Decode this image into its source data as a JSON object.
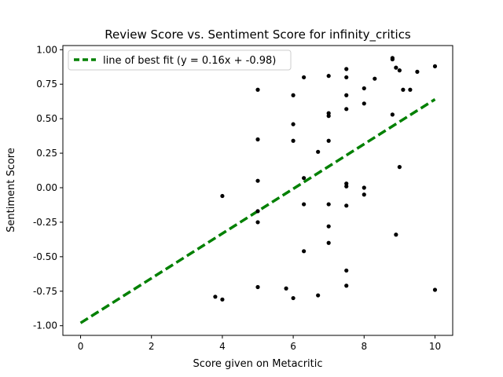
{
  "chart_data": {
    "type": "scatter",
    "title": "Review Score vs. Sentiment Score for infinity_critics",
    "xlabel": "Score given on Metacritic",
    "ylabel": "Sentiment Score",
    "xlim": [
      -0.5,
      10.5
    ],
    "ylim": [
      -1.07,
      1.03
    ],
    "xticks": [
      0,
      2,
      4,
      6,
      8,
      10
    ],
    "yticks": [
      -1.0,
      -0.75,
      -0.5,
      -0.25,
      0.0,
      0.25,
      0.5,
      0.75,
      1.0
    ],
    "grid": false,
    "legend": "upper left",
    "point_color": "#000000",
    "fit_color": "#008000",
    "series": [
      {
        "values": [
          [
            3.8,
            -0.79
          ],
          [
            4.0,
            -0.81
          ],
          [
            4.0,
            -0.06
          ],
          [
            5.0,
            0.71
          ],
          [
            5.0,
            0.35
          ],
          [
            5.0,
            0.05
          ],
          [
            5.0,
            -0.17
          ],
          [
            5.0,
            -0.25
          ],
          [
            5.0,
            -0.72
          ],
          [
            5.8,
            -0.73
          ],
          [
            6.0,
            0.67
          ],
          [
            6.0,
            0.46
          ],
          [
            6.0,
            0.34
          ],
          [
            6.0,
            -0.8
          ],
          [
            6.3,
            0.8
          ],
          [
            6.3,
            0.07
          ],
          [
            6.3,
            -0.12
          ],
          [
            6.3,
            -0.46
          ],
          [
            6.7,
            0.26
          ],
          [
            6.7,
            -0.78
          ],
          [
            7.0,
            0.81
          ],
          [
            7.0,
            0.54
          ],
          [
            7.0,
            0.52
          ],
          [
            7.0,
            0.34
          ],
          [
            7.0,
            -0.12
          ],
          [
            7.0,
            -0.28
          ],
          [
            7.0,
            -0.4
          ],
          [
            7.5,
            0.86
          ],
          [
            7.5,
            0.8
          ],
          [
            7.5,
            0.67
          ],
          [
            7.5,
            0.57
          ],
          [
            7.5,
            0.03
          ],
          [
            7.5,
            0.01
          ],
          [
            7.5,
            -0.13
          ],
          [
            7.5,
            -0.6
          ],
          [
            7.5,
            -0.71
          ],
          [
            8.0,
            0.72
          ],
          [
            8.0,
            0.61
          ],
          [
            8.0,
            0.0
          ],
          [
            8.0,
            -0.05
          ],
          [
            8.3,
            0.79
          ],
          [
            8.8,
            0.93
          ],
          [
            8.8,
            0.94
          ],
          [
            8.8,
            0.53
          ],
          [
            8.9,
            0.87
          ],
          [
            8.9,
            -0.34
          ],
          [
            9.0,
            0.85
          ],
          [
            9.0,
            0.15
          ],
          [
            9.1,
            0.71
          ],
          [
            9.3,
            0.71
          ],
          [
            9.5,
            0.84
          ],
          [
            10.0,
            0.88
          ],
          [
            10.0,
            -0.74
          ]
        ]
      }
    ],
    "fit_line": {
      "label": "line of best fit (y = 0.16x + -0.98)",
      "x": [
        0,
        10
      ],
      "y": [
        -0.98,
        0.64
      ]
    }
  }
}
